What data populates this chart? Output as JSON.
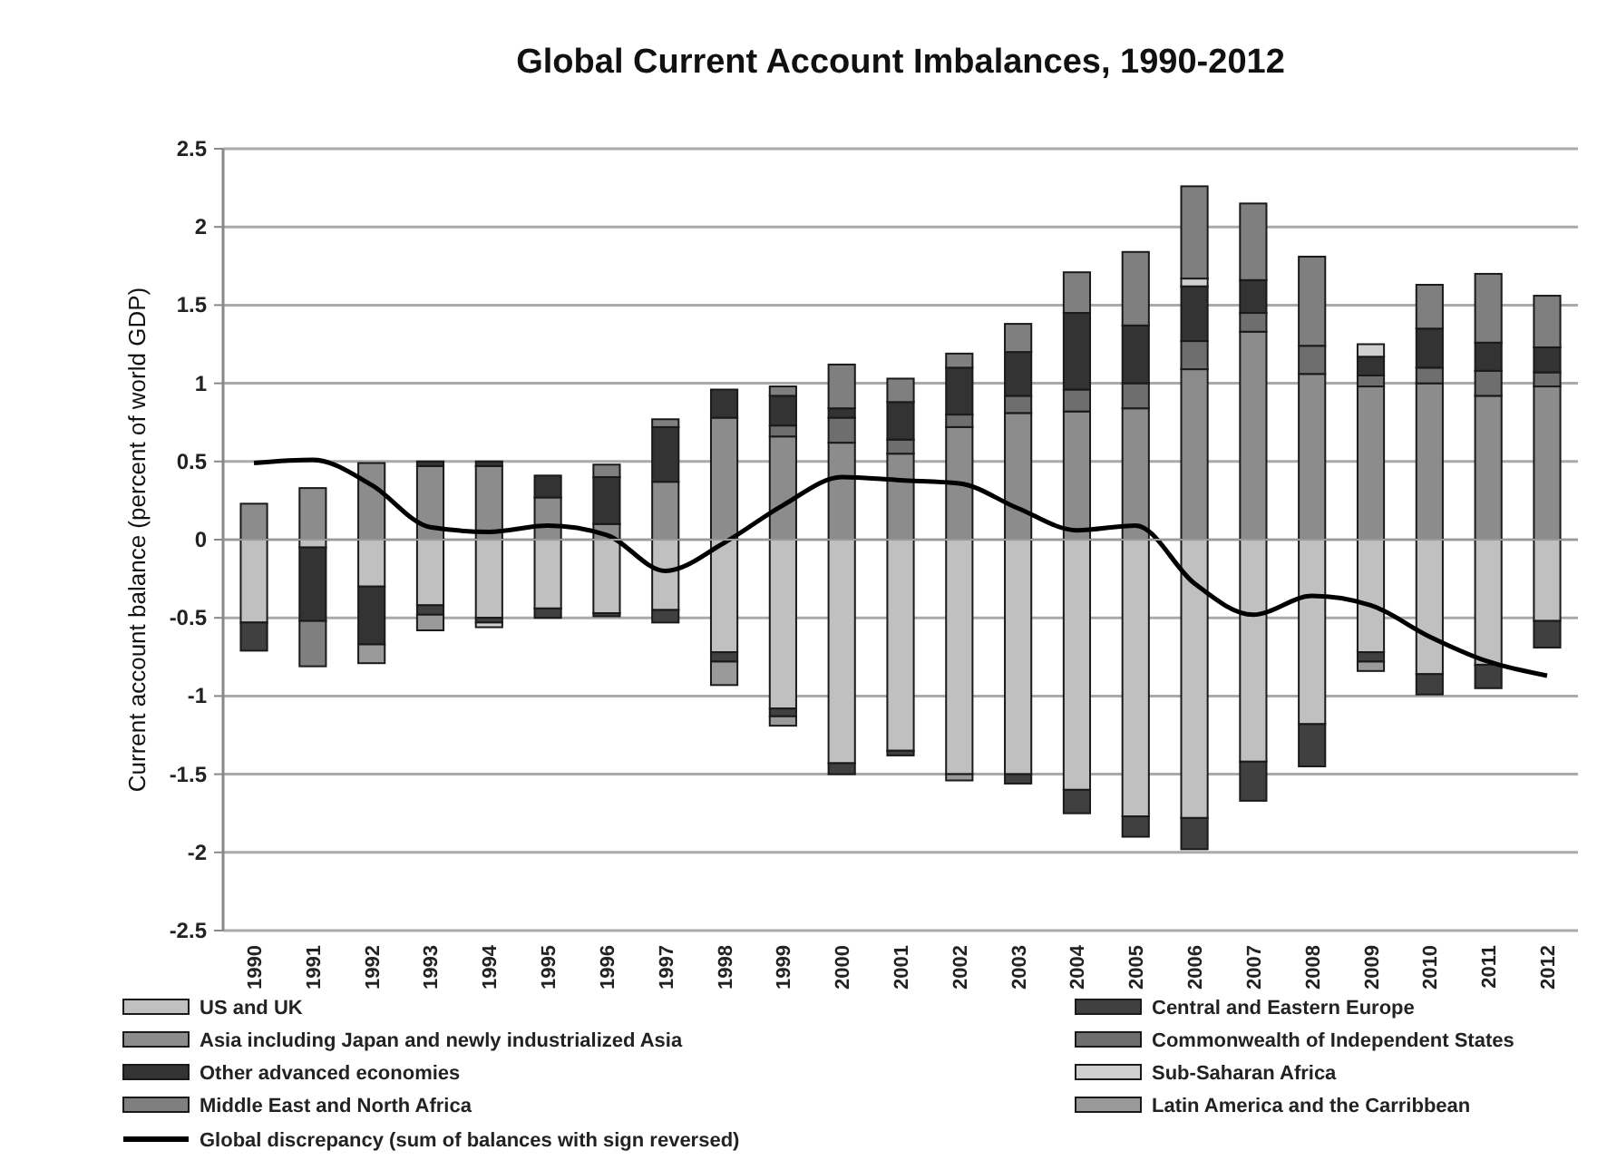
{
  "chart_data": {
    "type": "bar",
    "stacked": true,
    "title": "Global Current Account Imbalances, 1990-2012",
    "ylabel": "Current account balance (percent of world GDP)",
    "categories": [
      "1990",
      "1991",
      "1992",
      "1993",
      "1994",
      "1995",
      "1996",
      "1997",
      "1998",
      "1999",
      "2000",
      "2001",
      "2002",
      "2003",
      "2004",
      "2005",
      "2006",
      "2007",
      "2008",
      "2009",
      "2010",
      "2011",
      "2012"
    ],
    "ylim": [
      -2.5,
      2.5
    ],
    "yticks": [
      -2.5,
      -2,
      -1.5,
      -1,
      -0.5,
      0,
      0.5,
      1,
      1.5,
      2,
      2.5
    ],
    "grid": "y",
    "legend": "bottom",
    "series": [
      {
        "name": "US and UK",
        "color": "#c0c0c0",
        "values": [
          -0.53,
          -0.05,
          -0.3,
          -0.42,
          -0.5,
          -0.44,
          -0.47,
          -0.45,
          -0.72,
          -1.08,
          -1.43,
          -1.35,
          -1.5,
          -1.5,
          -1.6,
          -1.77,
          -1.78,
          -1.42,
          -1.18,
          -0.72,
          -0.86,
          -0.8,
          -0.52
        ]
      },
      {
        "name": "Central and Eastern Europe",
        "color": "#404040",
        "values": [
          -0.18,
          null,
          null,
          -0.06,
          -0.03,
          -0.06,
          -0.02,
          -0.08,
          -0.06,
          -0.05,
          -0.07,
          -0.03,
          null,
          -0.06,
          -0.15,
          -0.13,
          -0.2,
          -0.25,
          -0.27,
          -0.06,
          -0.13,
          -0.15,
          -0.17
        ]
      },
      {
        "name": "Asia including Japan and newly industrialized Asia",
        "color": "#8c8c8c",
        "values": [
          0.23,
          0.33,
          0.49,
          0.47,
          0.47,
          0.27,
          0.1,
          0.37,
          0.78,
          0.66,
          0.62,
          0.55,
          0.72,
          0.81,
          0.82,
          0.84,
          1.09,
          1.33,
          1.06,
          0.98,
          1.0,
          0.92,
          0.98
        ]
      },
      {
        "name": "Commonwealth of Independent States",
        "color": "#6e6e6e",
        "values": [
          null,
          null,
          null,
          null,
          null,
          null,
          null,
          null,
          null,
          0.07,
          0.16,
          0.09,
          0.08,
          0.11,
          0.14,
          0.16,
          0.18,
          0.12,
          0.18,
          0.07,
          0.1,
          0.16,
          0.09
        ]
      },
      {
        "name": "Other advanced economies",
        "color": "#333333",
        "values": [
          null,
          -0.47,
          -0.37,
          0.03,
          0.03,
          0.14,
          0.3,
          0.35,
          0.18,
          0.19,
          0.06,
          0.24,
          0.3,
          0.28,
          0.49,
          0.37,
          0.35,
          0.21,
          null,
          0.12,
          0.25,
          0.18,
          0.16
        ]
      },
      {
        "name": "Sub-Saharan Africa",
        "color": "#d0d0d0",
        "values": [
          null,
          null,
          null,
          null,
          -0.03,
          null,
          null,
          null,
          null,
          null,
          null,
          null,
          null,
          null,
          null,
          null,
          0.05,
          null,
          null,
          0.08,
          null,
          null,
          null
        ]
      },
      {
        "name": "Middle East and North Africa",
        "color": "#7f7f7f",
        "values": [
          null,
          -0.29,
          null,
          null,
          null,
          null,
          0.08,
          0.05,
          null,
          0.06,
          0.28,
          0.15,
          0.09,
          0.18,
          0.26,
          0.47,
          0.59,
          0.49,
          0.57,
          null,
          0.28,
          0.44,
          0.33
        ]
      },
      {
        "name": "Latin America and the Carribbean",
        "color": "#9a9a9a",
        "values": [
          null,
          null,
          -0.12,
          -0.1,
          null,
          null,
          null,
          null,
          -0.15,
          -0.06,
          null,
          null,
          -0.04,
          null,
          null,
          null,
          null,
          null,
          null,
          -0.06,
          null,
          null,
          null
        ]
      },
      {
        "name": "Global discrepancy (sum of balances with sign reversed)",
        "type": "line",
        "color": "#000000",
        "values": [
          0.49,
          0.51,
          0.35,
          0.08,
          0.05,
          0.09,
          0.03,
          -0.2,
          -0.02,
          0.22,
          0.4,
          0.38,
          0.36,
          0.2,
          0.06,
          0.09,
          -0.28,
          -0.48,
          -0.36,
          -0.42,
          -0.62,
          -0.78,
          -0.87
        ]
      }
    ]
  }
}
